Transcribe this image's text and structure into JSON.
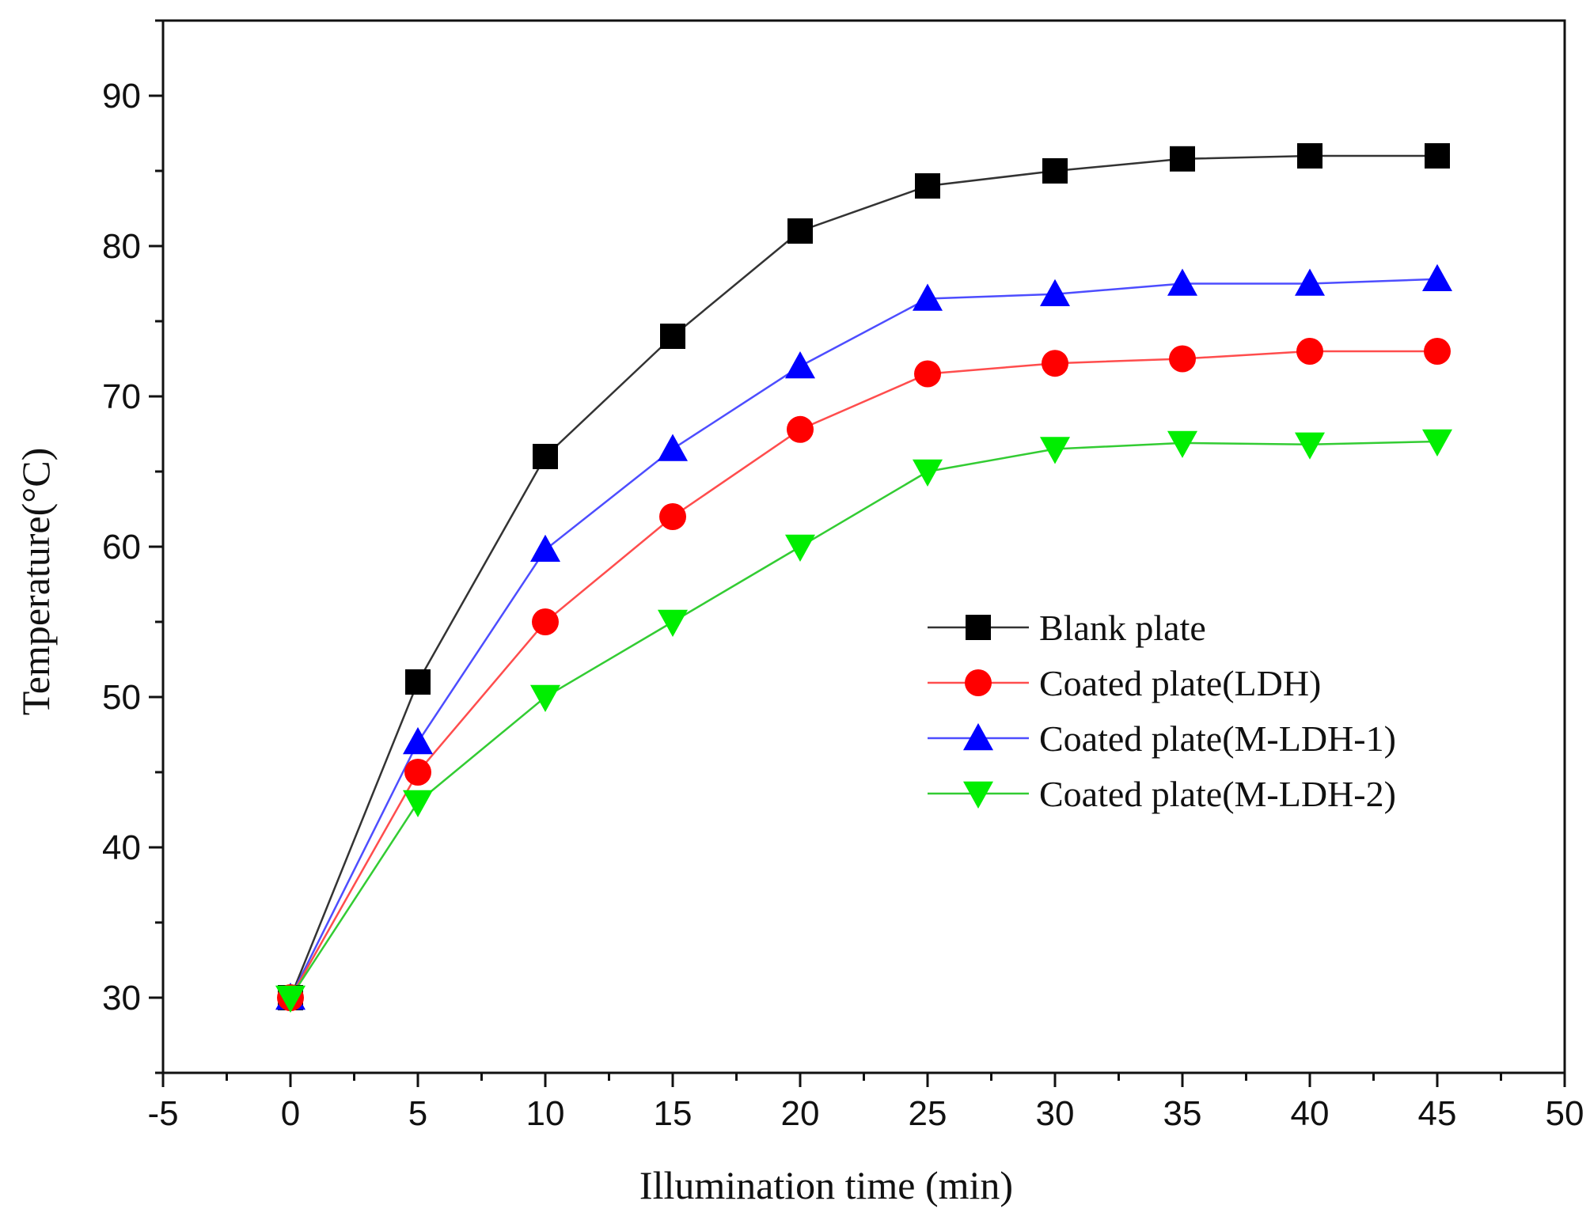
{
  "chart_data": {
    "type": "line",
    "title": "",
    "xlabel": "Illumination time (min)",
    "ylabel": "Temperature(°C)",
    "xlim": [
      -5,
      50
    ],
    "ylim": [
      25,
      95
    ],
    "x_ticks": [
      -5,
      0,
      5,
      10,
      15,
      20,
      25,
      30,
      35,
      40,
      45,
      50
    ],
    "x_tick_labels": [
      "-5",
      "0",
      "5",
      "10",
      "15",
      "20",
      "25",
      "30",
      "35",
      "40",
      "45",
      "50"
    ],
    "y_ticks": [
      30,
      40,
      50,
      60,
      70,
      80,
      90
    ],
    "y_tick_labels": [
      "30",
      "40",
      "50",
      "60",
      "70",
      "80",
      "90"
    ],
    "grid": false,
    "legend_position": "center-right",
    "x": [
      0,
      5,
      10,
      15,
      20,
      25,
      30,
      35,
      40,
      45
    ],
    "series": [
      {
        "name": "Blank plate",
        "marker": "square",
        "color": "#000000",
        "line_color": "#333333",
        "values": [
          30,
          51,
          66,
          74,
          81,
          84,
          85,
          85.8,
          86,
          86
        ]
      },
      {
        "name": "Coated plate(LDH)",
        "marker": "circle",
        "color": "#ff0000",
        "line_color": "#ff4d4d",
        "values": [
          30,
          45,
          55,
          62,
          67.8,
          71.5,
          72.2,
          72.5,
          73,
          73
        ]
      },
      {
        "name": "Coated plate(M-LDH-1)",
        "marker": "triangle-up",
        "color": "#0000ff",
        "line_color": "#4d4dff",
        "values": [
          30,
          47,
          59.8,
          66.5,
          72,
          76.5,
          76.8,
          77.5,
          77.5,
          77.8
        ]
      },
      {
        "name": "Coated plate(M-LDH-2)",
        "marker": "triangle-down",
        "color": "#00ee00",
        "line_color": "#33cc33",
        "values": [
          30,
          43,
          50,
          55,
          60,
          65,
          66.5,
          66.9,
          66.8,
          67
        ]
      }
    ]
  }
}
